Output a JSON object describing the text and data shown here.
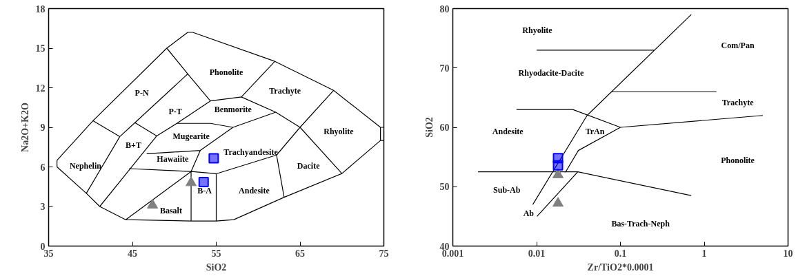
{
  "chart_data": [
    {
      "type": "scatter",
      "xlabel": "SiO2",
      "ylabel": "Na2O+K2O",
      "xlim": [
        35,
        75
      ],
      "ylim": [
        0,
        18
      ],
      "xticks": [
        35,
        45,
        55,
        65,
        75
      ],
      "yticks": [
        0,
        3,
        6,
        9,
        12,
        15,
        18
      ],
      "series": [
        {
          "type": "line",
          "color": "#000000",
          "x": [
            36,
            39.5,
            41.1,
            44.2,
            52,
            55,
            57.1,
            63.1,
            70,
            74.6,
            null,
            36,
            40.3,
            49.1,
            51.6,
            52.2,
            62,
            69,
            74.6,
            null,
            36,
            36,
            null,
            75,
            74.6,
            74.6,
            75,
            null,
            40.3,
            43.5,
            45.3,
            47.9,
            null,
            39.5,
            43.5,
            null,
            45.3,
            51.6,
            54.3,
            null,
            49.1,
            51.6,
            null,
            41.1,
            47.9,
            null,
            47.9,
            50.3,
            54.3,
            58,
            62.1,
            65,
            null,
            58,
            62,
            null,
            65,
            69,
            null,
            65,
            70,
            null,
            62.2,
            65,
            null,
            62.2,
            63.1,
            null,
            50.3,
            54.3,
            57,
            62.1,
            null,
            52,
            53.1,
            57,
            null,
            46.7,
            53.1,
            null,
            44.6,
            52,
            55,
            62.2,
            null,
            44.2,
            52,
            null,
            52,
            52,
            null,
            55,
            55
          ],
          "values": [
            6.0,
            4.0,
            3.0,
            2.0,
            1.9,
            1.9,
            2.0,
            3.7,
            5.5,
            8.0,
            null,
            6.5,
            9.5,
            15.0,
            16.2,
            16.2,
            14.0,
            11.8,
            9.0,
            null,
            6.0,
            6.5,
            null,
            8,
            8,
            9,
            9,
            null,
            9.5,
            8.3,
            9.35,
            8.35,
            null,
            4.0,
            8.3,
            null,
            9.35,
            13.05,
            11.0,
            null,
            15,
            13.05,
            null,
            3.0,
            8.35,
            null,
            8.35,
            9.3,
            11.0,
            11.3,
            10.15,
            9.0,
            null,
            11.3,
            14,
            null,
            9,
            11.8,
            null,
            9,
            5.5,
            null,
            6.9,
            9,
            null,
            6.9,
            3.7,
            null,
            9.3,
            9.3,
            9.0,
            10.15,
            null,
            5.65,
            7.25,
            9.0,
            null,
            7,
            7.25,
            null,
            5.87,
            5.65,
            5.48,
            6.9,
            null,
            2,
            5.65,
            null,
            1.9,
            5.65,
            null,
            1.9,
            5.48
          ]
        },
        {
          "marker": "triangle",
          "color": "#808080",
          "x": [
            47.4,
            52.0
          ],
          "values": [
            3.1,
            4.8
          ]
        },
        {
          "marker": "square",
          "color": "#0000ff",
          "x": [
            54.7,
            53.5
          ],
          "values": [
            6.65,
            4.85
          ]
        }
      ],
      "annotations": [
        "Phonolite",
        "P-N",
        "Trachyte",
        "P-T",
        "Benmorite",
        "Rhyolite",
        "Mugearite",
        "B+T",
        "Hawaiite",
        "Trachyandesite",
        "Nephelin",
        "Dacite",
        "B-A",
        "Andesite",
        "Basalt"
      ]
    },
    {
      "type": "scatter",
      "xlabel": "Zr/TiO2*0.0001",
      "ylabel": "SiO2",
      "log": "x",
      "xlim": [
        0.001,
        10
      ],
      "ylim": [
        40,
        80
      ],
      "xticks": [
        0.001,
        0.01,
        0.1,
        1,
        10
      ],
      "yticks": [
        40,
        50,
        60,
        70,
        80
      ],
      "series": [
        {
          "type": "line",
          "color": "#000000",
          "x": [
            0.01,
            0.25,
            null,
            0.7,
            0.04,
            0.009,
            null,
            0.0101,
            0.031,
            null,
            0.022,
            0.0315,
            0.1,
            5,
            null,
            0.002,
            0.031,
            0.7,
            null,
            0.00575,
            0.027,
            0.1,
            null,
            0.079,
            1.4
          ],
          "values": [
            73,
            73,
            null,
            79,
            62,
            47,
            null,
            45,
            52.5,
            null,
            52.4,
            56.1,
            60,
            62,
            null,
            52.5,
            52.5,
            48.5,
            null,
            63,
            63,
            60,
            null,
            66,
            66
          ]
        },
        {
          "marker": "triangle",
          "color": "#808080",
          "x": [
            0.018,
            0.018
          ],
          "values": [
            52,
            47.2
          ]
        },
        {
          "marker": "square",
          "color": "#0000ff",
          "x": [
            0.018,
            0.018
          ],
          "values": [
            54.8,
            53.6
          ]
        }
      ],
      "annotations": [
        "Rhyolite",
        "Com/Pan",
        "Rhyodacite-Dacite",
        "Trachyte",
        "Andesite",
        "TrAn",
        "Phonolite",
        "Sub-Ab",
        "Ab",
        "Bas-Trach-Neph"
      ]
    }
  ]
}
